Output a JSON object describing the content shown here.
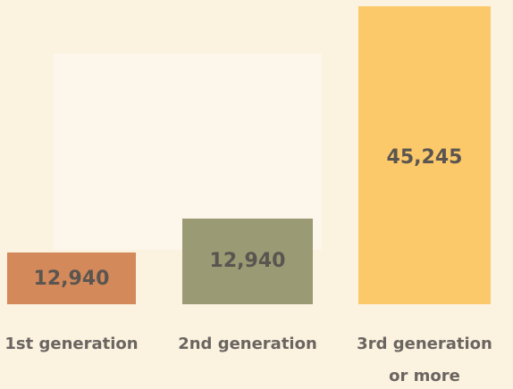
{
  "bars": [
    {
      "label": "12,940",
      "category": "1st generation"
    },
    {
      "label": "12,940",
      "category": "2nd generation"
    },
    {
      "label": "45,245",
      "category": [
        "3rd generation",
        "or more"
      ]
    }
  ]
}
